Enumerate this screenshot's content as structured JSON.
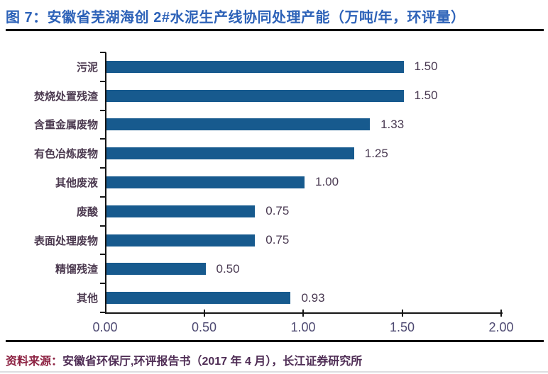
{
  "title": "图 7：安徽省芜湖海创 2#水泥生产线协同处理产能（万吨/年，环评量）",
  "footer": {
    "label": "资料来源：",
    "text": "安徽省环保厅,环评报告书（2017 年 4 月），长江证券研究所"
  },
  "colors": {
    "title_blue": "#2d62b8",
    "bar_blue": "#175a8e",
    "axis_black": "#151515",
    "label_dark": "#4a3a52",
    "footer_red": "#8d2343"
  },
  "chart_data": {
    "type": "bar",
    "orientation": "horizontal",
    "title": "安徽省芜湖海创2#水泥生产线协同处理产能",
    "unit": "万吨/年，环评量",
    "categories": [
      "污泥",
      "焚烧处置残渣",
      "含重金属废物",
      "有色冶炼废物",
      "其他废液",
      "废酸",
      "表面处理废物",
      "精馏残渣",
      "其他"
    ],
    "values": [
      1.5,
      1.5,
      1.33,
      1.25,
      1.0,
      0.75,
      0.75,
      0.5,
      0.93
    ],
    "value_labels": [
      "1.50",
      "1.50",
      "1.33",
      "1.25",
      "1.00",
      "0.75",
      "0.75",
      "0.50",
      "0.93"
    ],
    "xlim": [
      0.0,
      2.0
    ],
    "x_ticks": [
      0.0,
      0.5,
      1.0,
      1.5,
      2.0
    ],
    "x_tick_labels": [
      "0.00",
      "0.50",
      "1.00",
      "1.50",
      "2.00"
    ],
    "bar_color": "#175a8e",
    "grid": false,
    "legend": "none",
    "value_labels_position": "right-of-bar"
  }
}
